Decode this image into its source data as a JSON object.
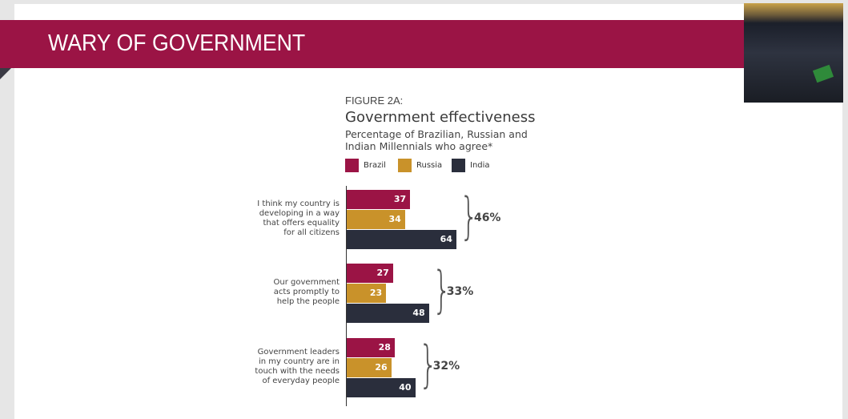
{
  "header": {
    "title": "WARY OF GOVERNMENT"
  },
  "chart_data": {
    "type": "bar",
    "orientation": "horizontal",
    "figure_label": "FIGURE 2A:",
    "title": "Government effectiveness",
    "subtitle": "Percentage of Brazilian, Russian and Indian Millennials who agree*",
    "legend": [
      "Brazil",
      "Russia",
      "India"
    ],
    "colors": [
      "#9b1445",
      "#c9922a",
      "#2a2e3c"
    ],
    "categories": [
      "I think my country is developing in a way that offers equality for all citizens",
      "Our government acts promptly to help the people",
      "Government leaders in my country are in touch with the needs of everyday people"
    ],
    "series": [
      {
        "name": "Brazil",
        "values": [
          37,
          27,
          28
        ]
      },
      {
        "name": "Russia",
        "values": [
          34,
          23,
          26
        ]
      },
      {
        "name": "India",
        "values": [
          64,
          48,
          40
        ]
      }
    ],
    "totals": [
      "46%",
      "33%",
      "32%"
    ]
  }
}
